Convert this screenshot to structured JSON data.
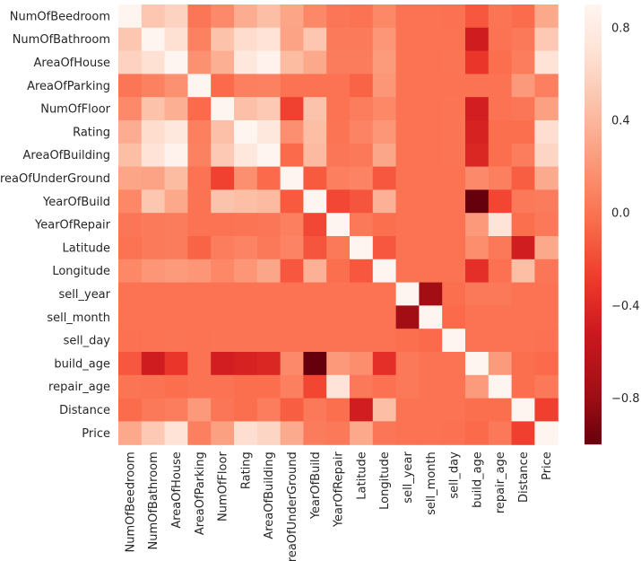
{
  "chart_data": {
    "type": "heatmap",
    "title": "",
    "labels": [
      "NumOfBeedroom",
      "NumOfBathroom",
      "AreaOfHouse",
      "AreaOfParking",
      "NumOfFloor",
      "Rating",
      "AreaOfBuilding",
      "AreaOfUnderGround",
      "YearOfBuild",
      "YearOfRepair",
      "Latitude",
      "Longitude",
      "sell_year",
      "sell_month",
      "sell_day",
      "build_age",
      "repair_age",
      "Distance",
      "Price"
    ],
    "matrix": [
      [
        1.0,
        0.5,
        0.58,
        0.02,
        0.13,
        0.34,
        0.45,
        0.29,
        0.12,
        0.02,
        0.0,
        0.12,
        0.0,
        0.0,
        -0.01,
        -0.14,
        0.01,
        -0.04,
        0.31
      ],
      [
        0.5,
        1.0,
        0.68,
        0.08,
        0.47,
        0.65,
        0.7,
        0.28,
        0.5,
        0.04,
        0.04,
        0.2,
        0.0,
        0.0,
        0.0,
        -0.5,
        0.0,
        0.03,
        0.52
      ],
      [
        0.58,
        0.68,
        1.0,
        0.17,
        0.35,
        0.76,
        0.87,
        0.43,
        0.31,
        0.05,
        0.05,
        0.23,
        0.0,
        0.0,
        0.01,
        -0.31,
        -0.02,
        0.06,
        0.7
      ],
      [
        0.02,
        0.08,
        0.17,
        1.0,
        -0.05,
        0.07,
        0.08,
        0.0,
        0.0,
        0.0,
        -0.08,
        0.2,
        0.0,
        0.0,
        0.0,
        0.0,
        0.0,
        0.22,
        0.07
      ],
      [
        0.13,
        0.47,
        0.35,
        -0.05,
        1.0,
        0.46,
        0.52,
        -0.25,
        0.48,
        0.0,
        0.06,
        0.12,
        0.0,
        0.0,
        0.01,
        -0.48,
        0.0,
        0.02,
        0.26
      ],
      [
        0.34,
        0.65,
        0.76,
        0.07,
        0.46,
        1.0,
        0.75,
        0.16,
        0.45,
        0.01,
        0.1,
        0.2,
        0.0,
        0.0,
        0.01,
        -0.45,
        -0.02,
        -0.03,
        0.66
      ],
      [
        0.45,
        0.7,
        0.87,
        0.08,
        0.52,
        0.75,
        1.0,
        -0.05,
        0.42,
        0.02,
        0.03,
        0.3,
        0.0,
        0.0,
        0.01,
        -0.42,
        -0.02,
        0.06,
        0.6
      ],
      [
        0.29,
        0.28,
        0.43,
        0.0,
        -0.25,
        0.16,
        -0.05,
        1.0,
        -0.13,
        0.07,
        0.1,
        -0.14,
        0.0,
        0.0,
        0.0,
        0.13,
        0.07,
        -0.11,
        0.32
      ],
      [
        0.12,
        0.5,
        0.31,
        0.0,
        0.48,
        0.45,
        0.42,
        -0.13,
        1.0,
        -0.22,
        -0.15,
        0.36,
        0.0,
        0.0,
        0.0,
        -1.0,
        -0.23,
        0.03,
        0.05
      ],
      [
        0.02,
        0.04,
        0.05,
        0.0,
        0.0,
        0.01,
        0.02,
        0.07,
        -0.22,
        1.0,
        0.03,
        -0.03,
        0.0,
        0.0,
        0.0,
        0.22,
        0.72,
        -0.03,
        0.03
      ],
      [
        0.0,
        0.04,
        0.05,
        -0.08,
        0.06,
        0.1,
        0.03,
        0.1,
        -0.15,
        0.03,
        1.0,
        -0.14,
        0.0,
        0.0,
        0.0,
        0.15,
        0.03,
        -0.49,
        0.31
      ],
      [
        0.12,
        0.2,
        0.23,
        0.2,
        0.12,
        0.2,
        0.3,
        -0.14,
        0.36,
        -0.03,
        -0.14,
        1.0,
        0.0,
        0.0,
        0.0,
        -0.36,
        -0.01,
        0.45,
        0.02
      ],
      [
        0.0,
        0.0,
        0.0,
        0.0,
        0.0,
        0.0,
        0.0,
        0.0,
        0.0,
        0.0,
        0.0,
        0.0,
        1.0,
        -0.78,
        -0.03,
        0.03,
        0.03,
        0.0,
        0.0
      ],
      [
        0.0,
        0.0,
        0.0,
        0.0,
        0.0,
        0.0,
        0.0,
        0.0,
        0.0,
        0.0,
        0.0,
        0.0,
        -0.78,
        1.0,
        -0.05,
        0.0,
        0.0,
        0.0,
        0.0
      ],
      [
        -0.01,
        0.0,
        0.01,
        0.0,
        0.01,
        0.01,
        0.01,
        0.0,
        0.0,
        0.0,
        0.0,
        0.0,
        -0.03,
        -0.05,
        1.0,
        0.0,
        0.0,
        0.0,
        -0.01
      ],
      [
        -0.14,
        -0.5,
        -0.31,
        0.0,
        -0.48,
        -0.45,
        -0.42,
        0.13,
        -1.0,
        0.22,
        0.15,
        -0.36,
        0.03,
        0.0,
        0.0,
        1.0,
        0.23,
        -0.03,
        -0.05
      ],
      [
        0.01,
        0.0,
        -0.02,
        0.0,
        0.0,
        -0.02,
        -0.02,
        0.07,
        -0.23,
        0.72,
        0.03,
        -0.01,
        0.03,
        0.0,
        0.0,
        0.23,
        1.0,
        -0.03,
        0.03
      ],
      [
        -0.04,
        0.03,
        0.06,
        0.22,
        0.02,
        -0.03,
        0.06,
        -0.11,
        0.03,
        -0.03,
        -0.49,
        0.45,
        0.0,
        0.0,
        0.0,
        -0.03,
        -0.03,
        1.0,
        -0.26
      ],
      [
        0.31,
        0.52,
        0.7,
        0.07,
        0.26,
        0.66,
        0.6,
        0.32,
        0.05,
        0.03,
        0.31,
        0.02,
        0.0,
        0.0,
        -0.01,
        -0.05,
        0.03,
        -0.26,
        1.0
      ]
    ],
    "colormap": "Reds_r",
    "vmin": -1.0,
    "vmax": 0.9,
    "colorbar_ticks": [
      "0.8",
      "0.4",
      "0.0",
      "−0.4",
      "−0.8"
    ],
    "colorbar_tick_values": [
      0.8,
      0.4,
      0.0,
      -0.4,
      -0.8
    ]
  }
}
